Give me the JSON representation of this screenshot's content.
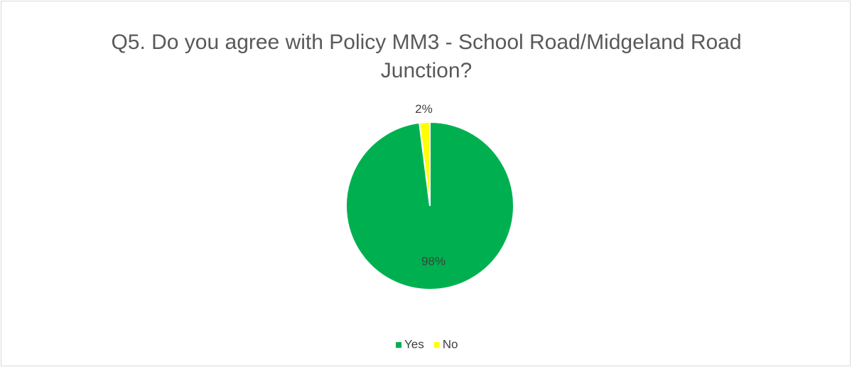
{
  "chart_data": {
    "type": "pie",
    "title": "Q5. Do you agree with Policy MM3 - School Road/Midgeland Road Junction?",
    "categories": [
      "Yes",
      "No"
    ],
    "values": [
      98,
      2
    ],
    "value_labels": [
      "98%",
      "2%"
    ],
    "colors": [
      "#00b050",
      "#ffff00"
    ],
    "legend": "bottom"
  }
}
